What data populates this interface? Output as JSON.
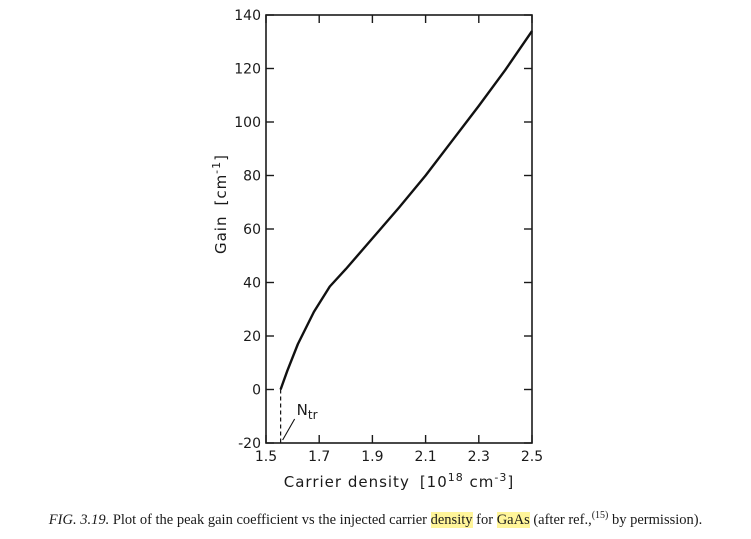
{
  "chart_data": {
    "type": "line",
    "xlabel": "Carrier density",
    "xunit": "[10",
    "xunit_exp": "18",
    "xunit_tail": " cm",
    "xunit_tail_exp": "-3",
    "xunit_close": "]",
    "ylabel": "Gain",
    "yunit": "[cm",
    "yunit_exp": "-1",
    "yunit_close": "]",
    "xlim": [
      1.5,
      2.5
    ],
    "ylim": [
      -20,
      140
    ],
    "x_ticks": [
      1.5,
      1.7,
      1.9,
      2.1,
      2.3,
      2.5
    ],
    "x_tick_labels": [
      "1.5",
      "1.7",
      "1.9",
      "2.1",
      "2.3",
      "2.5"
    ],
    "y_ticks": [
      -20,
      0,
      20,
      40,
      60,
      80,
      100,
      120,
      140
    ],
    "y_tick_labels": [
      "-20",
      "0",
      "20",
      "40",
      "60",
      "80",
      "100",
      "120",
      "140"
    ],
    "series": [
      {
        "x": [
          1.555,
          1.58,
          1.62,
          1.68,
          1.74,
          1.8,
          1.9,
          2.0,
          2.1,
          2.2,
          2.3,
          2.4,
          2.5
        ],
        "y": [
          0,
          7,
          17,
          29,
          38.5,
          45,
          56.5,
          68,
          80,
          93,
          106,
          119.5,
          134
        ]
      }
    ],
    "transparency_marker": {
      "label": "N",
      "label_sub": "tr",
      "x": 1.555
    },
    "grid": false
  },
  "caption": {
    "fig_label": "FIG. 3.19.",
    "text_1": "Plot of the peak gain coefficient vs the injected carrier",
    "highlight_1": "density",
    "text_2": "for",
    "highlight_2": "GaAs",
    "text_3": "(after ref.,",
    "ref": "(15)",
    "text_4": "by permission)."
  }
}
